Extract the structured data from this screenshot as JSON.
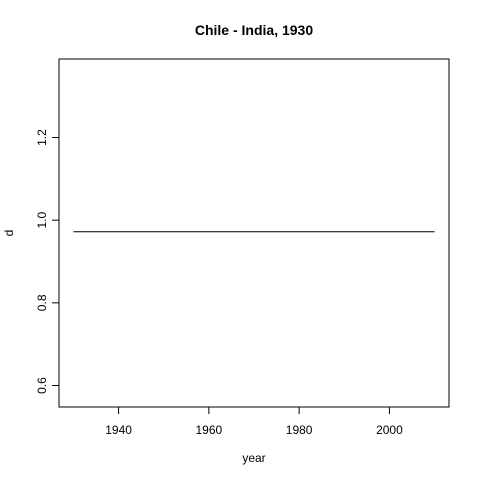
{
  "chart_data": {
    "type": "line",
    "title": "Chile - India, 1930",
    "xlabel": "year",
    "ylabel": "d",
    "xlim": [
      1926.8,
      2013.2
    ],
    "ylim": [
      0.548,
      1.39
    ],
    "x_ticks": [
      1940,
      1960,
      1980,
      2000
    ],
    "y_ticks": [
      0.6,
      0.8,
      1.0,
      1.2
    ],
    "x_tick_labels": [
      "1940",
      "1960",
      "1980",
      "2000"
    ],
    "y_tick_labels": [
      "0.6",
      "0.8",
      "1.0",
      "1.2"
    ],
    "grid": false,
    "legend": "none",
    "series": [
      {
        "x": [
          1930,
          2010
        ],
        "y": [
          0.972,
          0.972
        ],
        "color": "#000000"
      }
    ]
  }
}
